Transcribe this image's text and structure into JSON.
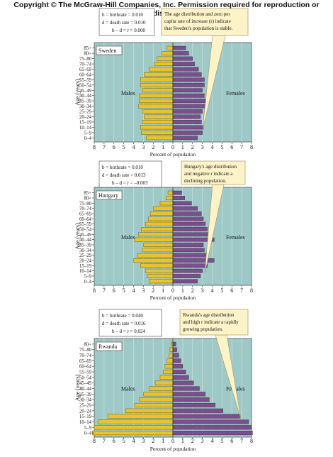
{
  "copyright": "Copyright © The McGraw-Hill Companies, Inc. Permission required for reproduction or display.",
  "colors": {
    "male": "#e8c32a",
    "female": "#7b4f8e",
    "panel": "#9ec9c6",
    "grid": "#c6e0de",
    "callout": "#fdf3c9"
  },
  "axis_label_y": "Age (years)",
  "axis_label_x": "Percent of population",
  "male_label": "Males",
  "female_label": "Females",
  "x_ticks": [
    "8",
    "7",
    "6",
    "5",
    "4",
    "3",
    "2",
    "1",
    "0",
    "1",
    "2",
    "3",
    "4",
    "5",
    "6",
    "7",
    "8"
  ],
  "chart_data": [
    {
      "type": "bar",
      "title": "Sweden",
      "rates": [
        "b = birthrate = 0.010",
        "d = death rate = 0.010",
        "b – d = r = 0.000"
      ],
      "callout": [
        "The age distribution and zero per",
        "capita rate of increase (r) indicate",
        "that Sweden's population is stable."
      ],
      "categories": [
        "85+",
        "80+",
        "75–80",
        "70–74",
        "65–69",
        "60–64",
        "55–59",
        "50–54",
        "45–49",
        "40–44",
        "35–39",
        "30–34",
        "25–29",
        "20–24",
        "15–19",
        "10–14",
        "5–9",
        "0–4"
      ],
      "series": [
        {
          "name": "Males",
          "values": [
            0.6,
            1.1,
            1.6,
            1.9,
            2.4,
            2.9,
            3.3,
            3.3,
            3.1,
            3.4,
            3.4,
            3.5,
            3.1,
            2.9,
            3.1,
            3.3,
            3.2,
            2.7
          ]
        },
        {
          "name": "Females",
          "values": [
            1.3,
            1.6,
            2.0,
            2.2,
            2.6,
            2.9,
            3.2,
            3.2,
            3.0,
            3.2,
            3.3,
            3.3,
            3.0,
            2.8,
            2.9,
            3.1,
            3.0,
            2.5
          ]
        }
      ],
      "xlim": [
        -8,
        8
      ]
    },
    {
      "type": "bar",
      "title": "Hungary",
      "rates": [
        "b = birthrate = 0.010",
        "d = death rate = 0.013",
        "b – d = r = –0.003"
      ],
      "callout": [
        "Hungary's age distribution",
        "and negative r indicate a",
        "declining population."
      ],
      "categories": [
        "85+",
        "80+",
        "75–80",
        "70–74",
        "65–69",
        "60–64",
        "55–59",
        "50–54",
        "45–49",
        "40–44",
        "35–39",
        "30–34",
        "25–29",
        "20–24",
        "15–19",
        "10–14",
        "5–9",
        "0–4"
      ],
      "series": [
        {
          "name": "Males",
          "values": [
            0.5,
            0.7,
            1.3,
            2.0,
            2.3,
            2.5,
            2.8,
            3.2,
            3.5,
            3.9,
            3.0,
            3.1,
            3.6,
            4.0,
            3.3,
            2.8,
            2.6,
            2.4
          ]
        },
        {
          "name": "Females",
          "values": [
            0.9,
            1.2,
            1.9,
            2.5,
            2.9,
            3.1,
            3.3,
            3.5,
            3.9,
            4.2,
            3.1,
            3.2,
            3.6,
            4.2,
            3.5,
            3.0,
            2.8,
            2.5
          ]
        }
      ],
      "xlim": [
        -8,
        8
      ]
    },
    {
      "type": "bar",
      "title": "Rwanda",
      "rates": [
        "b = birthrate = 0.040",
        "d = death rate = 0.016",
        "b – d = r = 0.024"
      ],
      "callout": [
        "Rwanda's age distribution",
        "and high r indicate a rapidly",
        "growing population."
      ],
      "categories": [
        "80+",
        "75–80",
        "70–74",
        "65–69",
        "60–64",
        "55–59",
        "50–54",
        "45–49",
        "40–44",
        "35–39",
        "30–34",
        "25–29",
        "20–24",
        "15–19",
        "10–14",
        "5–9",
        "0–4"
      ],
      "series": [
        {
          "name": "Males",
          "values": [
            0.2,
            0.3,
            0.4,
            0.6,
            0.8,
            1.0,
            1.3,
            1.8,
            2.4,
            3.0,
            3.4,
            3.9,
            4.8,
            6.6,
            7.6,
            8.0,
            8.2
          ]
        },
        {
          "name": "Females",
          "values": [
            0.3,
            0.4,
            0.6,
            0.8,
            1.0,
            1.3,
            1.6,
            2.1,
            2.7,
            3.3,
            3.7,
            4.3,
            5.1,
            6.8,
            7.7,
            8.0,
            8.1
          ]
        }
      ],
      "xlim": [
        -8,
        8
      ]
    }
  ]
}
